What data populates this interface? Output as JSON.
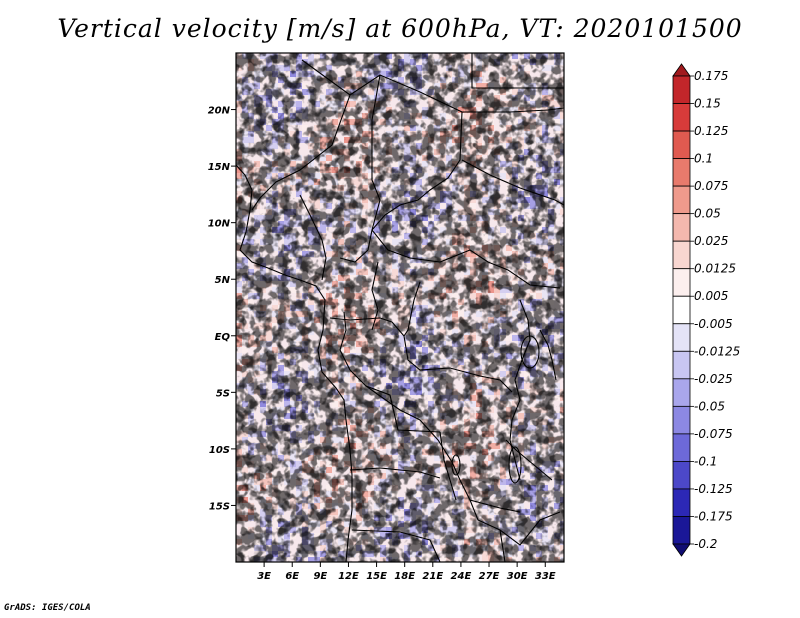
{
  "chart_data": {
    "type": "heatmap",
    "title": "Vertical velocity [m/s] at 600hPa, VT: 2020101500",
    "variable": "Vertical velocity",
    "units": "m/s",
    "level": "600hPa",
    "valid_time": "2020101500",
    "x_axis": {
      "range": [
        0,
        35
      ],
      "tick_labels": [
        "3E",
        "6E",
        "9E",
        "12E",
        "15E",
        "18E",
        "21E",
        "24E",
        "27E",
        "30E",
        "33E"
      ],
      "tick_values": [
        3,
        6,
        9,
        12,
        15,
        18,
        21,
        24,
        27,
        30,
        33
      ]
    },
    "y_axis": {
      "range": [
        -20,
        25
      ],
      "tick_labels": [
        "20N",
        "15N",
        "10N",
        "5N",
        "EQ",
        "5S",
        "10S",
        "15S"
      ],
      "tick_values": [
        20,
        15,
        10,
        5,
        0,
        -5,
        -10,
        -15
      ]
    },
    "colorbar": {
      "orientation": "vertical",
      "placement": "right",
      "levels": [
        "0.175",
        "0.15",
        "0.125",
        "0.1",
        "0.075",
        "0.05",
        "0.025",
        "0.0125",
        "0.005",
        "-0.005",
        "-0.0125",
        "-0.025",
        "-0.05",
        "-0.075",
        "-0.1",
        "-0.125",
        "-0.175",
        "-0.2"
      ],
      "colors": [
        "#a11a1e",
        "#c2262a",
        "#d73b3a",
        "#e05a50",
        "#e87a6c",
        "#ef9a8c",
        "#f4b8ae",
        "#f8d6d0",
        "#fcefee",
        "#ffffff",
        "#e4e3f7",
        "#c8c6f2",
        "#a9a6ec",
        "#8c88e3",
        "#6d69d9",
        "#4c48c9",
        "#2c28b6",
        "#1a1797",
        "#100c72"
      ]
    },
    "features": [
      "coastlines",
      "national borders"
    ]
  },
  "credit": "GrADS: IGES/COLA"
}
